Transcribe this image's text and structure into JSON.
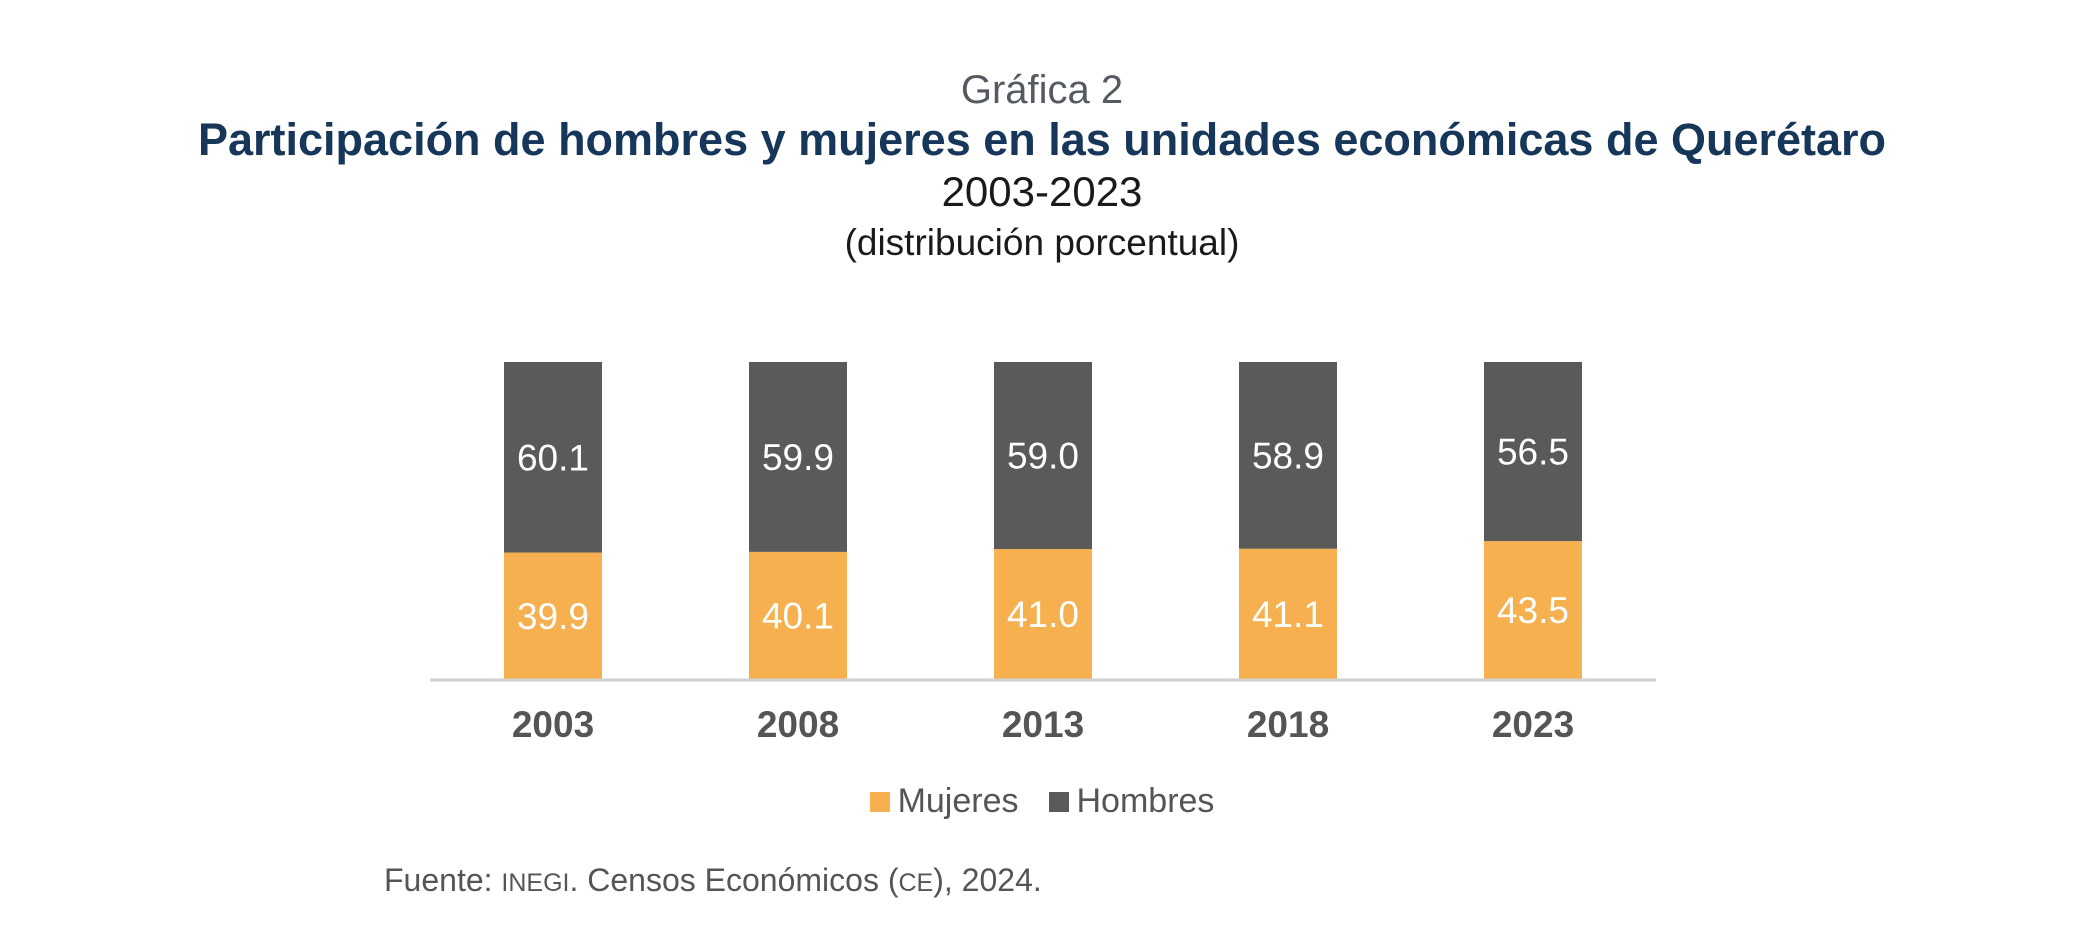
{
  "header": {
    "eyebrow": "Gráfica 2",
    "title": "Participación de hombres y mujeres en las unidades económicas de Querétaro",
    "period": "2003-2023",
    "units": "(distribución porcentual)"
  },
  "colors": {
    "mujeres": "#F6B04F",
    "hombres": "#5A5A59",
    "axis": "#D0D0D0",
    "value_text": "#FFFFFF",
    "tick_text": "#555555"
  },
  "chart_data": {
    "type": "bar",
    "stacked": true,
    "categories": [
      "2003",
      "2008",
      "2013",
      "2018",
      "2023"
    ],
    "series": [
      {
        "name": "Mujeres",
        "values": [
          39.9,
          40.1,
          41.0,
          41.1,
          43.5
        ]
      },
      {
        "name": "Hombres",
        "values": [
          60.1,
          59.9,
          59.0,
          58.9,
          56.5
        ]
      }
    ],
    "value_labels": {
      "Mujeres": [
        "39.9",
        "40.1",
        "41.0",
        "41.1",
        "43.5"
      ],
      "Hombres": [
        "60.1",
        "59.9",
        "59.0",
        "58.9",
        "56.5"
      ]
    },
    "ylim": [
      0,
      100
    ],
    "grid": false,
    "legend_position": "bottom"
  },
  "legend": {
    "mujeres": "Mujeres",
    "hombres": "Hombres"
  },
  "source": {
    "prefix": "Fuente: ",
    "org": "INEGI",
    "mid": ". Censos Económicos (",
    "abbr": "CE",
    "suffix": "), 2024."
  }
}
